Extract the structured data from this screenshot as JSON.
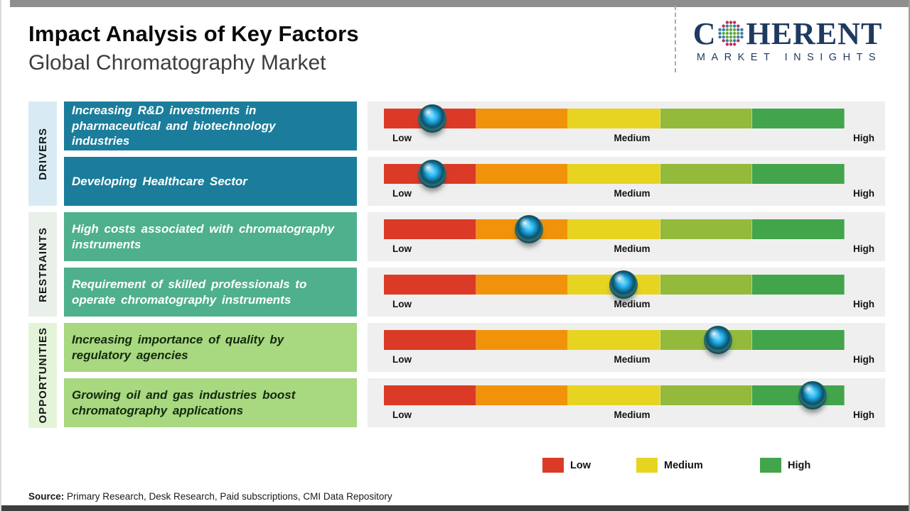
{
  "page": {
    "top_bar_color": "#8E8E8E",
    "bottom_bar_color": "#3E3E3E"
  },
  "header": {
    "title": "Impact Analysis of Key Factors",
    "subtitle": "Global Chromatography Market"
  },
  "logo": {
    "word_start": "C",
    "word_end": "HERENT",
    "tagline": "MARKET INSIGHTS",
    "navy": "#1F3A5F",
    "dot_colors": {
      "green": "#5FA648",
      "blue": "#3A7CA8",
      "crimson": "#C02A5A"
    }
  },
  "groups": [
    {
      "label": "DRIVERS",
      "box_bg": "#D8EBF5",
      "factor_bg": "#1B7D9B",
      "factor_text": "#FFFFFF"
    },
    {
      "label": "RESTRAINTS",
      "box_bg": "#E9EFE9",
      "factor_bg": "#4EB08C",
      "factor_text": "#FFFFFF"
    },
    {
      "label": "OPPORTUNITIES",
      "box_bg": "#E4F4D9",
      "factor_bg": "#A8D87F",
      "factor_text": "#14290F"
    }
  ],
  "chart_data": {
    "type": "table",
    "title": "Impact Analysis of Key Factors",
    "subtitle": "Global Chromatography Market",
    "scale": {
      "min_label": "Low",
      "mid_label": "Medium",
      "max_label": "High",
      "range": [
        0,
        100
      ],
      "segment_colors": [
        "#DB3B26",
        "#F0930B",
        "#E7D420",
        "#93BA3B",
        "#42A54C"
      ]
    },
    "rows": [
      {
        "group": "Drivers",
        "group_index": 0,
        "factor": "Increasing R&D investments in\npharmaceutical and biotechnology\nindustries",
        "impact_pct": 10.5,
        "impact_level": "Low"
      },
      {
        "group": "Drivers",
        "group_index": 0,
        "factor": "Developing Healthcare Sector",
        "impact_pct": 10.5,
        "impact_level": "Low"
      },
      {
        "group": "Restraints",
        "group_index": 1,
        "factor": "High costs associated with chromatography\ninstruments",
        "impact_pct": 31.5,
        "impact_level": "Low-Medium"
      },
      {
        "group": "Restraints",
        "group_index": 1,
        "factor": "Requirement of skilled professionals to\noperate chromatography instruments",
        "impact_pct": 52,
        "impact_level": "Medium"
      },
      {
        "group": "Opportunities",
        "group_index": 2,
        "factor": "Increasing importance of quality by\nregulatory agencies",
        "impact_pct": 72.5,
        "impact_level": "Medium-High"
      },
      {
        "group": "Opportunities",
        "group_index": 2,
        "factor": "Growing oil and gas industries boost\nchromatography applications",
        "impact_pct": 93,
        "impact_level": "High"
      }
    ],
    "legend": [
      {
        "label": "Low",
        "color": "#DB3B26"
      },
      {
        "label": "Medium",
        "color": "#E7D420"
      },
      {
        "label": "High",
        "color": "#42A54C"
      }
    ],
    "marker": {
      "style": "glossy-sphere",
      "core_color": "#2FB8EF",
      "ring_color": "#14373D"
    }
  },
  "source": {
    "prefix": "Source:",
    "text": " Primary Research, Desk Research, Paid subscriptions, CMI Data Repository"
  }
}
